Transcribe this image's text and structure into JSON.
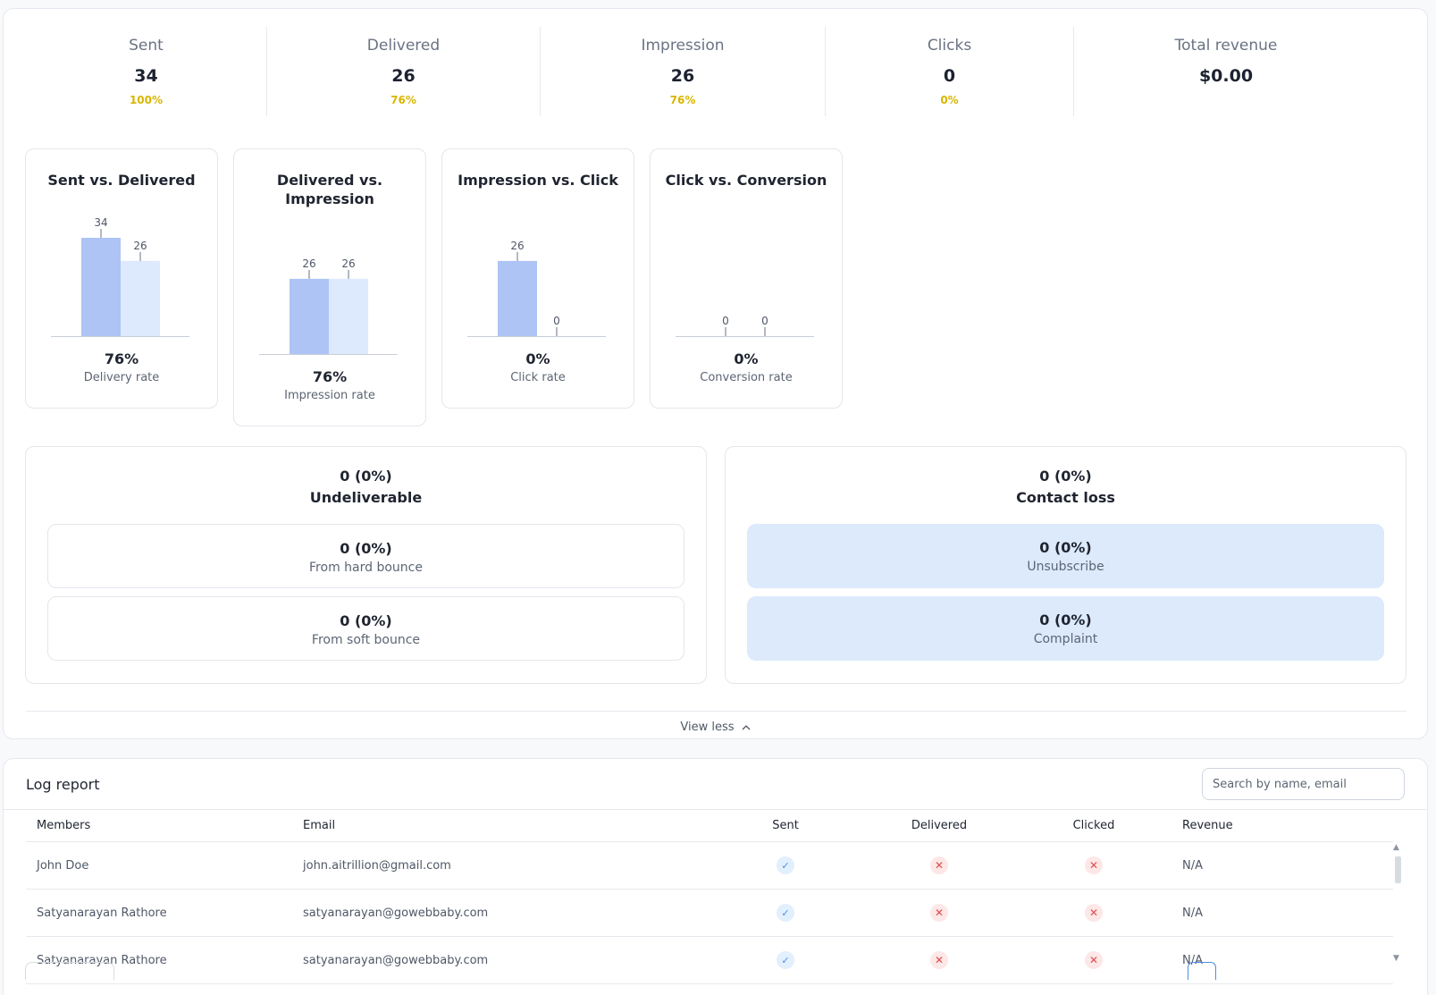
{
  "stats": [
    {
      "label": "Sent",
      "value": "34",
      "pct": "100%"
    },
    {
      "label": "Delivered",
      "value": "26",
      "pct": "76%"
    },
    {
      "label": "Impression",
      "value": "26",
      "pct": "76%"
    },
    {
      "label": "Clicks",
      "value": "0",
      "pct": "0%"
    },
    {
      "label": "Total revenue",
      "value": "$0.00",
      "pct": ""
    }
  ],
  "chart_data": [
    {
      "type": "bar",
      "title": "Sent vs. Delivered",
      "categories": [
        "Sent",
        "Delivered"
      ],
      "values": [
        34,
        26
      ],
      "rate": "76%",
      "rate_label": "Delivery rate"
    },
    {
      "type": "bar",
      "title": "Delivered vs. Impression",
      "categories": [
        "Delivered",
        "Impression"
      ],
      "values": [
        26,
        26
      ],
      "rate": "76%",
      "rate_label": "Impression rate"
    },
    {
      "type": "bar",
      "title": "Impression vs. Click",
      "categories": [
        "Impression",
        "Click"
      ],
      "values": [
        26,
        0
      ],
      "rate": "0%",
      "rate_label": "Click rate"
    },
    {
      "type": "bar",
      "title": "Click vs. Conversion",
      "categories": [
        "Click",
        "Conversion"
      ],
      "values": [
        0,
        0
      ],
      "rate": "0%",
      "rate_label": "Conversion rate"
    }
  ],
  "undeliverable": {
    "count": "0 (0%)",
    "title": "Undeliverable",
    "items": [
      {
        "value": "0 (0%)",
        "label": "From hard bounce"
      },
      {
        "value": "0 (0%)",
        "label": "From soft bounce"
      }
    ]
  },
  "contact_loss": {
    "count": "0 (0%)",
    "title": "Contact loss",
    "items": [
      {
        "value": "0 (0%)",
        "label": "Unsubscribe"
      },
      {
        "value": "0 (0%)",
        "label": "Complaint"
      }
    ]
  },
  "view_less_label": "View less",
  "log_report": {
    "title": "Log report",
    "search_placeholder": "Search by name, email",
    "columns": [
      "Members",
      "Email",
      "Sent",
      "Delivered",
      "Clicked",
      "Revenue"
    ],
    "rows": [
      {
        "member": "John Doe",
        "email": "john.aitrillion@gmail.com",
        "sent": true,
        "delivered": false,
        "clicked": false,
        "revenue": "N/A"
      },
      {
        "member": "Satyanarayan Rathore",
        "email": "satyanarayan@gowebbaby.com",
        "sent": true,
        "delivered": false,
        "clicked": false,
        "revenue": "N/A"
      },
      {
        "member": "Satyanarayan Rathore",
        "email": "satyanarayan@gowebbaby.com",
        "sent": true,
        "delivered": false,
        "clicked": false,
        "revenue": "N/A"
      }
    ]
  },
  "colors": {
    "bar_primary": "#adc4f5",
    "bar_secondary": "#dde9fc",
    "percent": "#d9b600",
    "loss_blue": "#dceafb",
    "ok": "#4a8fe0",
    "error": "#e24b4b"
  }
}
